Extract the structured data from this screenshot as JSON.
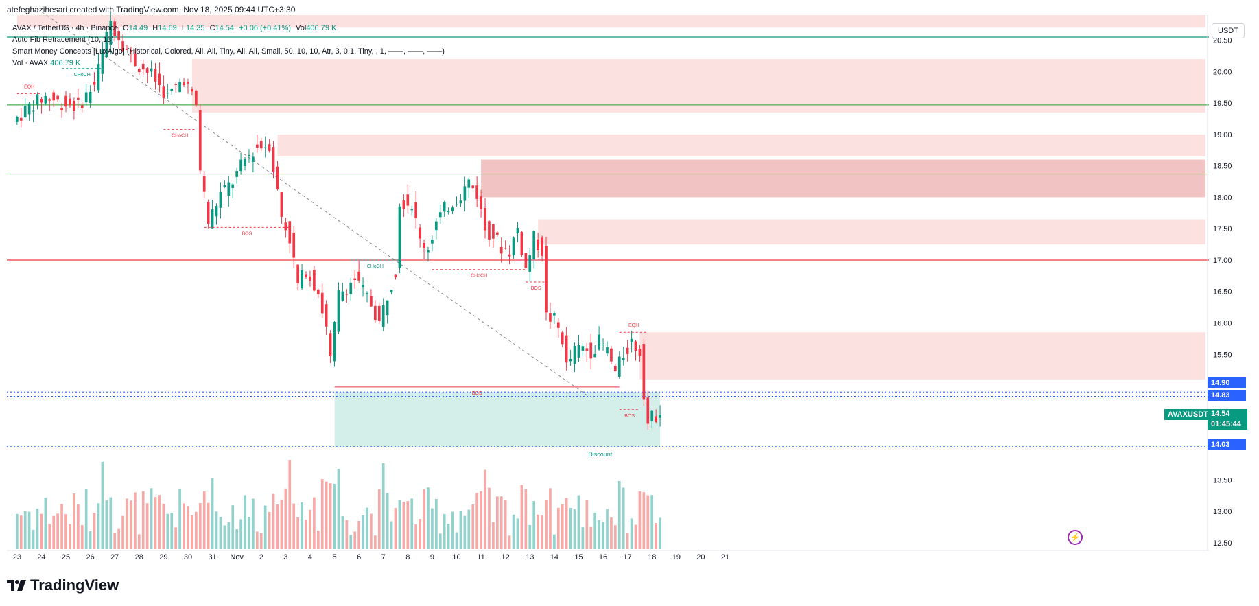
{
  "credit": "atefeghazihesari created with TradingView.com, Nov 18, 2025 09:44 UTC+3:30",
  "legend": {
    "symbol": "AVAX / TetherUS · 4h · Binance",
    "o_label": "O",
    "o": "14.49",
    "h_label": "H",
    "h": "14.69",
    "l_label": "L",
    "l": "14.35",
    "c_label": "C",
    "c": "14.54",
    "change": "+0.06 (+0.41%)",
    "vol_label": "Vol",
    "vol": "406.79 K",
    "fib": "Auto Fib Retracement (10, 13)",
    "smc": "Smart Money Concepts [LuxAlgo] (Historical, Colored, All, All, Tiny, All, All, Small, 50, 10, 10, Atr, 3, 0.1, Tiny, , 1, ——, ——, ——)",
    "vol_ind": "Vol · AVAX",
    "vol_ind_value": "406.79 K"
  },
  "currency": "USDT",
  "brand": "TradingView",
  "price_tags": {
    "p1490": "14.90",
    "p1483": "14.83",
    "p1403": "14.03",
    "symbol_tag": "AVAXUSDT",
    "current_price": "14.54",
    "countdown": "01:45:44"
  },
  "colors": {
    "up": "#089981",
    "down": "#f23645",
    "up_vol": "#92d2cc",
    "down_vol": "#f7a9a7",
    "supply": "#fbdcdc",
    "discount": "#cdece6",
    "fib_blue": "#2962ff"
  },
  "chart_data": {
    "type": "candlestick",
    "title": "AVAX / TetherUS · 4h · Binance",
    "ylim": [
      12.4,
      20.9
    ],
    "yticks": [
      12.5,
      13.0,
      13.5,
      14.0,
      14.5,
      15.0,
      15.5,
      16.0,
      16.5,
      17.0,
      17.5,
      18.0,
      18.5,
      19.0,
      19.5,
      20.0,
      20.5
    ],
    "ytick_labels": [
      "12.50",
      "13.00",
      "13.50",
      "14.00",
      "14.50",
      "15.00",
      "15.50",
      "16.00",
      "16.50",
      "17.00",
      "17.50",
      "18.00",
      "18.50",
      "19.00",
      "19.50",
      "20.00",
      "20.50"
    ],
    "ytick_shown": [
      true,
      true,
      true,
      false,
      false,
      false,
      true,
      true,
      true,
      true,
      true,
      true,
      true,
      true,
      true,
      true,
      true
    ],
    "x_start_index": -2.5,
    "x_end_index": 292,
    "xticks": [
      {
        "i": 0,
        "label": "23"
      },
      {
        "i": 6,
        "label": "24"
      },
      {
        "i": 12,
        "label": "25"
      },
      {
        "i": 18,
        "label": "26"
      },
      {
        "i": 24,
        "label": "27"
      },
      {
        "i": 30,
        "label": "28"
      },
      {
        "i": 36,
        "label": "29"
      },
      {
        "i": 42,
        "label": "30"
      },
      {
        "i": 48,
        "label": "31"
      },
      {
        "i": 54,
        "label": "Nov"
      },
      {
        "i": 60,
        "label": "2"
      },
      {
        "i": 66,
        "label": "3"
      },
      {
        "i": 72,
        "label": "4"
      },
      {
        "i": 78,
        "label": "5"
      },
      {
        "i": 84,
        "label": "6"
      },
      {
        "i": 90,
        "label": "7"
      },
      {
        "i": 96,
        "label": "8"
      },
      {
        "i": 102,
        "label": "9"
      },
      {
        "i": 108,
        "label": "10"
      },
      {
        "i": 114,
        "label": "11"
      },
      {
        "i": 120,
        "label": "12"
      },
      {
        "i": 126,
        "label": "13"
      },
      {
        "i": 132,
        "label": "14"
      },
      {
        "i": 138,
        "label": "15"
      },
      {
        "i": 144,
        "label": "16"
      },
      {
        "i": 150,
        "label": "17"
      },
      {
        "i": 156,
        "label": "18"
      },
      {
        "i": 162,
        "label": "19"
      },
      {
        "i": 168,
        "label": "20"
      },
      {
        "i": 174,
        "label": "21"
      }
    ],
    "path_points": [
      [
        0,
        19.2
      ],
      [
        4,
        19.45
      ],
      [
        8,
        19.6
      ],
      [
        12,
        19.5
      ],
      [
        16,
        19.45
      ],
      [
        20,
        19.8
      ],
      [
        24,
        20.8
      ],
      [
        27,
        20.45
      ],
      [
        30,
        20.15
      ],
      [
        34,
        19.95
      ],
      [
        38,
        19.6
      ],
      [
        42,
        19.9
      ],
      [
        45,
        19.45
      ],
      [
        46,
        18.45
      ],
      [
        48,
        17.6
      ],
      [
        51,
        18.05
      ],
      [
        54,
        18.25
      ],
      [
        57,
        18.6
      ],
      [
        60,
        18.8
      ],
      [
        63,
        18.85
      ],
      [
        66,
        17.7
      ],
      [
        68,
        17.35
      ],
      [
        70,
        16.6
      ],
      [
        72,
        16.85
      ],
      [
        75,
        16.5
      ],
      [
        77,
        15.9
      ],
      [
        78,
        15.4
      ],
      [
        80,
        16.45
      ],
      [
        84,
        16.7
      ],
      [
        88,
        16.3
      ],
      [
        90,
        16.0
      ],
      [
        92,
        16.45
      ],
      [
        94,
        16.85
      ],
      [
        95,
        17.95
      ],
      [
        98,
        17.9
      ],
      [
        100,
        17.3
      ],
      [
        102,
        17.2
      ],
      [
        104,
        17.6
      ],
      [
        106,
        17.8
      ],
      [
        110,
        18.05
      ],
      [
        112,
        18.25
      ],
      [
        114,
        18.05
      ],
      [
        116,
        17.5
      ],
      [
        118,
        17.4
      ],
      [
        120,
        17.2
      ],
      [
        122,
        17.15
      ],
      [
        124,
        17.5
      ],
      [
        126,
        16.85
      ],
      [
        128,
        17.35
      ],
      [
        130,
        17.15
      ],
      [
        131,
        16.1
      ],
      [
        133,
        16.05
      ],
      [
        135,
        15.75
      ],
      [
        136,
        15.3
      ],
      [
        138,
        15.55
      ],
      [
        140,
        15.6
      ],
      [
        142,
        15.55
      ],
      [
        144,
        15.7
      ],
      [
        146,
        15.55
      ],
      [
        148,
        15.2
      ],
      [
        150,
        15.5
      ],
      [
        152,
        15.7
      ],
      [
        154,
        15.55
      ],
      [
        155,
        14.9
      ],
      [
        156,
        14.4
      ],
      [
        157,
        14.49
      ],
      [
        158,
        14.54
      ]
    ],
    "bullish_step": 8,
    "volume_scale_max": 1.0,
    "levels": [
      {
        "name": "fib-level-20.55",
        "y": 20.55,
        "color": "#089981"
      },
      {
        "name": "fib-level-19.47",
        "y": 19.47,
        "color": "#4caf50"
      },
      {
        "name": "fib-level-18.37",
        "y": 18.37,
        "color": "#81c784"
      },
      {
        "name": "fib-level-17.0",
        "y": 17.0,
        "color": "#f23645"
      },
      {
        "name": "fib-level-14.90",
        "y": 14.9,
        "color": "#2962ff",
        "dotted": true
      },
      {
        "name": "fib-level-14.83",
        "y": 14.83,
        "color": "#2962ff",
        "dotted": true
      },
      {
        "name": "fib-level-14.03",
        "y": 14.03,
        "color": "#2962ff",
        "dotted": true
      }
    ],
    "zones": [
      {
        "name": "supply-zone-top",
        "x0": 0,
        "x1": 292,
        "y0": 20.7,
        "y1": 20.9,
        "kind": "supply"
      },
      {
        "name": "supply-zone-1",
        "x0": 43,
        "x1": 292,
        "y0": 19.35,
        "y1": 20.2,
        "kind": "supply"
      },
      {
        "name": "supply-zone-2",
        "x0": 64,
        "x1": 292,
        "y0": 18.65,
        "y1": 19.0,
        "kind": "supply"
      },
      {
        "name": "supply-zone-3",
        "x0": 114,
        "x1": 292,
        "y0": 18.0,
        "y1": 18.6,
        "kind": "supply_dark"
      },
      {
        "name": "supply-zone-4",
        "x0": 128,
        "x1": 292,
        "y0": 17.25,
        "y1": 17.65,
        "kind": "supply"
      },
      {
        "name": "supply-zone-5",
        "x0": 153,
        "x1": 292,
        "y0": 15.1,
        "y1": 15.85,
        "kind": "supply"
      },
      {
        "name": "discount-zone",
        "x0": 78,
        "x1": 158,
        "y0": 14.03,
        "y1": 14.9,
        "kind": "discount"
      }
    ],
    "structure_lines": [
      {
        "name": "eqh-line-left",
        "x0": 0,
        "x1": 6,
        "y": 19.65,
        "color": "#f23645",
        "label": "EQH"
      },
      {
        "name": "choch-line-top",
        "x0": 11,
        "x1": 21,
        "y": 20.05,
        "color": "#089981",
        "label": "CHoCH"
      },
      {
        "name": "choch-line-red",
        "x0": 36,
        "x1": 44,
        "y": 19.08,
        "color": "#f23645",
        "label": "CHoCH"
      },
      {
        "name": "bos-line-1",
        "x0": 46,
        "x1": 67,
        "y": 17.52,
        "color": "#f23645",
        "label": "BOS"
      },
      {
        "name": "choch-line-green",
        "x0": 82,
        "x1": 94,
        "y": 17.0,
        "color": "#089981",
        "label": "CHoCH"
      },
      {
        "name": "choch-line-red-2",
        "x0": 102,
        "x1": 125,
        "y": 16.85,
        "color": "#f23645",
        "label": "CHoCH"
      },
      {
        "name": "bos-line-2",
        "x0": 125,
        "x1": 130,
        "y": 16.65,
        "color": "#f23645",
        "label": "BOS"
      },
      {
        "name": "bos-line-3",
        "x0": 78,
        "x1": 148,
        "y": 14.98,
        "color": "#f23645",
        "label": "BOS",
        "solid": true
      },
      {
        "name": "bos-line-4",
        "x0": 148,
        "x1": 153,
        "y": 14.62,
        "color": "#f23645",
        "label": "BOS"
      },
      {
        "name": "eqh-line-right",
        "x0": 148,
        "x1": 155,
        "y": 15.85,
        "color": "#f23645",
        "label": "EQH"
      }
    ],
    "discount_label": "Discount",
    "trendline": {
      "from": [
        5,
        21.0
      ],
      "to": [
        140,
        14.85
      ]
    }
  }
}
